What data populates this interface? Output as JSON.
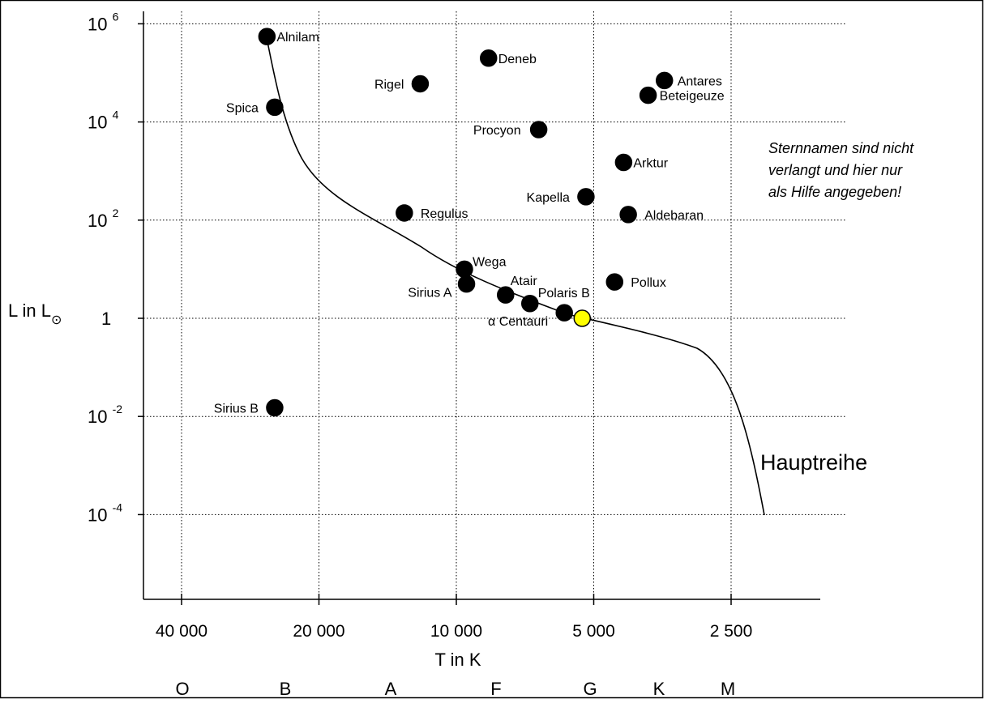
{
  "chart_data": {
    "type": "scatter",
    "y_axis": {
      "label": "L in L",
      "label_subscript": "⊙",
      "scale": "log",
      "ticks": [
        {
          "base": "10",
          "exp": "6",
          "value": 1000000
        },
        {
          "base": "10",
          "exp": "4",
          "value": 10000
        },
        {
          "base": "10",
          "exp": "2",
          "value": 100
        },
        {
          "base": "1",
          "exp": "",
          "value": 1
        },
        {
          "base": "10",
          "exp": "-2",
          "value": 0.01
        },
        {
          "base": "10",
          "exp": "-4",
          "value": 0.0001
        }
      ]
    },
    "x_axis": {
      "label": "T in K",
      "ticks": [
        "40 000",
        "20 000",
        "10 000",
        "5 000",
        "2 500"
      ],
      "spectral_classes": [
        "O",
        "B",
        "A",
        "F",
        "G",
        "K",
        "M"
      ]
    },
    "curve_label": "Hauptreihe",
    "note_lines": [
      "Sternnamen sind nicht",
      "verlangt und hier nur",
      "als Hilfe angegeben!"
    ],
    "stars": [
      {
        "name": "Alnilam",
        "T": 26000,
        "L": 550000,
        "color": "#000000"
      },
      {
        "name": "Deneb",
        "T": 8500,
        "L": 200000,
        "color": "#000000"
      },
      {
        "name": "Rigel",
        "T": 12000,
        "L": 60000,
        "color": "#000000"
      },
      {
        "name": "Antares",
        "T": 3500,
        "L": 70000,
        "color": "#000000"
      },
      {
        "name": "Beteigeuze",
        "T": 3800,
        "L": 35000,
        "color": "#000000"
      },
      {
        "name": "Spica",
        "T": 25000,
        "L": 20000,
        "color": "#000000"
      },
      {
        "name": "Procyon",
        "T": 6600,
        "L": 7000,
        "color": "#000000"
      },
      {
        "name": "Arktur",
        "T": 4300,
        "L": 1500,
        "color": "#000000"
      },
      {
        "name": "Kapella",
        "T": 5200,
        "L": 300,
        "color": "#000000"
      },
      {
        "name": "Regulus",
        "T": 13000,
        "L": 140,
        "color": "#000000"
      },
      {
        "name": "Aldebaran",
        "T": 4200,
        "L": 130,
        "color": "#000000"
      },
      {
        "name": "Wega",
        "T": 9600,
        "L": 10,
        "color": "#000000"
      },
      {
        "name": "Sirius A",
        "T": 9500,
        "L": 5,
        "color": "#000000"
      },
      {
        "name": "Pollux",
        "T": 4500,
        "L": 5.5,
        "color": "#000000"
      },
      {
        "name": "Atair",
        "T": 7800,
        "L": 3,
        "color": "#000000"
      },
      {
        "name": "Polaris B",
        "T": 6900,
        "L": 2,
        "color": "#000000"
      },
      {
        "name": "α Centauri",
        "T": 5800,
        "L": 1.3,
        "color": "#000000"
      },
      {
        "name": "Sonne",
        "T": 5300,
        "L": 1,
        "color": "#ffff00",
        "labeled": false
      },
      {
        "name": "Sirius B",
        "T": 25000,
        "L": 0.015,
        "color": "#000000"
      }
    ]
  }
}
